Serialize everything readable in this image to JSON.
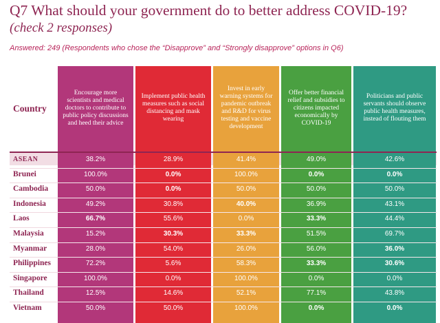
{
  "title": "Q7 What should your government do to better address COVID-19?",
  "subtitle": "(check 2 responses)",
  "answered": "Answered: 249 (Respondents who chose the “Disapprove” and “Strongly disapprove” options in Q6)",
  "country_header": "Country",
  "colors": {
    "title": "#8e2552",
    "col1": "#b2377a",
    "col2": "#e02a36",
    "col3": "#e8a23c",
    "col4": "#4aa041",
    "col5": "#2f9a83"
  },
  "chart_data": {
    "type": "table",
    "columns": [
      "Encourage more scientists and medical doctors to contribute to public policy discussions and heed their advice",
      "Implement public health measures such as social distancing and mask wearing",
      "Invest in early warning systems for pandemic outbreak and R&D for virus testing and vaccine development",
      "Offer better financial relief and subsidies to citizens impacted economically by COVID-19",
      "Politicians and public servants should observe public health measures, instead of flouting them"
    ],
    "rows": [
      {
        "country": "ASEAN",
        "values": [
          "38.2%",
          "28.9%",
          "41.4%",
          "49.0%",
          "42.6%"
        ],
        "bold": [
          false,
          false,
          false,
          false,
          false
        ]
      },
      {
        "country": "Brunei",
        "values": [
          "100.0%",
          "0.0%",
          "100.0%",
          "0.0%",
          "0.0%"
        ],
        "bold": [
          false,
          true,
          false,
          true,
          true
        ]
      },
      {
        "country": "Cambodia",
        "values": [
          "50.0%",
          "0.0%",
          "50.0%",
          "50.0%",
          "50.0%"
        ],
        "bold": [
          false,
          true,
          false,
          false,
          false
        ]
      },
      {
        "country": "Indonesia",
        "values": [
          "49.2%",
          "30.8%",
          "40.0%",
          "36.9%",
          "43.1%"
        ],
        "bold": [
          false,
          false,
          true,
          false,
          false
        ]
      },
      {
        "country": "Laos",
        "values": [
          "66.7%",
          "55.6%",
          "0.0%",
          "33.3%",
          "44.4%"
        ],
        "bold": [
          true,
          false,
          false,
          true,
          false
        ]
      },
      {
        "country": "Malaysia",
        "values": [
          "15.2%",
          "30.3%",
          "33.3%",
          "51.5%",
          "69.7%"
        ],
        "bold": [
          false,
          true,
          true,
          false,
          false
        ]
      },
      {
        "country": "Myanmar",
        "values": [
          "28.0%",
          "54.0%",
          "26.0%",
          "56.0%",
          "36.0%"
        ],
        "bold": [
          false,
          false,
          false,
          false,
          true
        ]
      },
      {
        "country": "Philippines",
        "values": [
          "72.2%",
          "5.6%",
          "58.3%",
          "33.3%",
          "30.6%"
        ],
        "bold": [
          false,
          false,
          false,
          true,
          true
        ]
      },
      {
        "country": "Singapore",
        "values": [
          "100.0%",
          "0.0%",
          "100.0%",
          "0.0%",
          "0.0%"
        ],
        "bold": [
          false,
          false,
          false,
          false,
          false
        ]
      },
      {
        "country": "Thailand",
        "values": [
          "12.5%",
          "14.6%",
          "52.1%",
          "77.1%",
          "43.8%"
        ],
        "bold": [
          false,
          false,
          false,
          false,
          false
        ]
      },
      {
        "country": "Vietnam",
        "values": [
          "50.0%",
          "50.0%",
          "100.0%",
          "0.0%",
          "0.0%"
        ],
        "bold": [
          false,
          false,
          false,
          true,
          true
        ]
      }
    ]
  }
}
